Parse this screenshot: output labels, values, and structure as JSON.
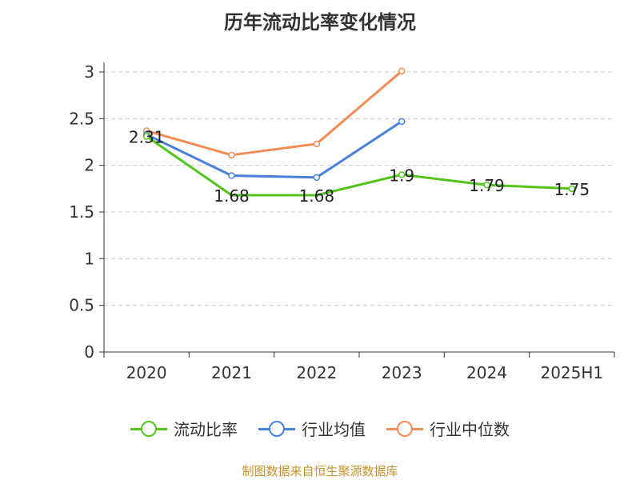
{
  "title": "历年流动比率变化情况",
  "source": "制图数据来自恒生聚源数据库",
  "legend": [
    {
      "label": "流动比率",
      "color": "#52c41a"
    },
    {
      "label": "行业均值",
      "color": "#4a7fdb"
    },
    {
      "label": "行业中位数",
      "color": "#f28c55"
    }
  ],
  "chart_data": {
    "type": "line",
    "title": "历年流动比率变化情况",
    "categories": [
      "2020",
      "2021",
      "2022",
      "2023",
      "2024",
      "2025H1"
    ],
    "ylim": [
      0,
      3
    ],
    "yticks": [
      "0",
      "0.5",
      "1",
      "1.5",
      "2",
      "2.5",
      "3"
    ],
    "grid": true,
    "legend_position": "bottom",
    "series": [
      {
        "name": "流动比率",
        "color": "#52c41a",
        "values": [
          2.31,
          1.68,
          1.68,
          1.9,
          1.79,
          1.75
        ],
        "labels": [
          "2.31",
          "1.68",
          "1.68",
          "1.9",
          "1.79",
          "1.75"
        ],
        "markers_at": [
          0,
          3,
          4,
          5
        ]
      },
      {
        "name": "行业均值",
        "color": "#4a7fdb",
        "values": [
          2.33,
          1.89,
          1.87,
          2.47,
          null,
          null
        ]
      },
      {
        "name": "行业中位数",
        "color": "#f28c55",
        "values": [
          2.37,
          2.11,
          2.23,
          3.01,
          null,
          null
        ]
      }
    ]
  }
}
